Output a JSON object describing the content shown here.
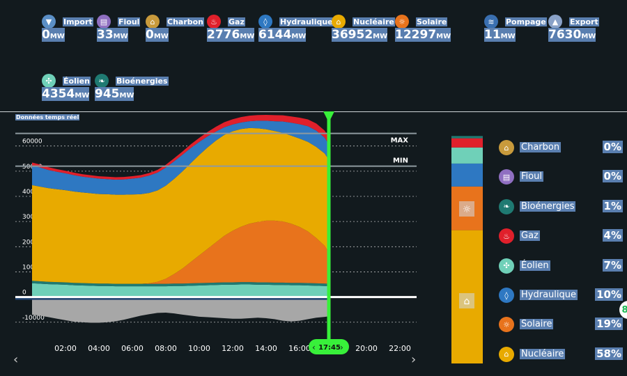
{
  "kpis": [
    {
      "id": "import",
      "label": "Import",
      "value": "0",
      "unit": "MW",
      "color": "#5b8fc6",
      "icon": "chevron-down-icon",
      "glyph": "▼"
    },
    {
      "id": "fioul",
      "label": "Fioul",
      "value": "33",
      "unit": "MW",
      "color": "#8f6fc1",
      "icon": "barrel-icon",
      "glyph": "▤"
    },
    {
      "id": "charbon",
      "label": "Charbon",
      "value": "0",
      "unit": "MW",
      "color": "#c89a3c",
      "icon": "coal-icon",
      "glyph": "⌂"
    },
    {
      "id": "gaz",
      "label": "Gaz",
      "value": "2776",
      "unit": "MW",
      "color": "#e0202b",
      "icon": "flame-icon",
      "glyph": "♨"
    },
    {
      "id": "hydraulique",
      "label": "Hydraulique",
      "value": "6144",
      "unit": "MW",
      "color": "#2e78c2",
      "icon": "water-drop-icon",
      "glyph": "◊"
    },
    {
      "id": "nucleaire",
      "label": "Nucléaire",
      "value": "36952",
      "unit": "MW",
      "color": "#e8aa00",
      "icon": "nuclear-plant-icon",
      "glyph": "⌂"
    },
    {
      "id": "solaire",
      "label": "Solaire",
      "value": "12297",
      "unit": "MW",
      "color": "#e8731c",
      "icon": "sun-icon",
      "glyph": "☼"
    },
    {
      "id": "pompage",
      "label": "Pompage",
      "value": "11",
      "unit": "MW",
      "color": "#3a6fb0",
      "icon": "pump-icon",
      "glyph": "≋"
    },
    {
      "id": "export",
      "label": "Export",
      "value": "7630",
      "unit": "MW",
      "color": "#8aa2c8",
      "icon": "chevron-up-icon",
      "glyph": "▲"
    },
    {
      "id": "eolien",
      "label": "Éolien",
      "value": "4354",
      "unit": "MW",
      "color": "#6fd0b8",
      "icon": "wind-turbine-icon",
      "glyph": "✣"
    },
    {
      "id": "bioenergies",
      "label": "Bioénergies",
      "value": "945",
      "unit": "MW",
      "color": "#1f7a72",
      "icon": "leaf-icon",
      "glyph": "❧"
    }
  ],
  "realtime_label": "Données temps réel",
  "cursor_time": "17:45",
  "chart_data": {
    "type": "area",
    "x": [
      0,
      0.5,
      1,
      1.5,
      2,
      2.5,
      3,
      3.5,
      4,
      4.5,
      5,
      5.5,
      6,
      6.5,
      7,
      7.5,
      8,
      8.5,
      9,
      9.5,
      10,
      10.5,
      11,
      11.5,
      12,
      12.5,
      13,
      13.5,
      14,
      14.5,
      15,
      15.5,
      16,
      16.5,
      17,
      17.5,
      17.75
    ],
    "x_unit": "hours",
    "xticks": [
      "02:00",
      "04:00",
      "06:00",
      "08:00",
      "10:00",
      "12:00",
      "14:00",
      "16:00",
      "18:00",
      "20:00",
      "22:00"
    ],
    "ylim": [
      -12000,
      66000
    ],
    "yticks": [
      -10000,
      0,
      10000,
      20000,
      30000,
      40000,
      50000,
      60000
    ],
    "max_line": 65000,
    "min_line": 52000,
    "max_label": "MAX",
    "min_label": "MIN",
    "series": [
      {
        "name": "Éolien",
        "color": "#6fd0b8",
        "values": [
          5500,
          5300,
          5100,
          5000,
          4900,
          4700,
          4600,
          4500,
          4400,
          4400,
          4300,
          4300,
          4300,
          4300,
          4300,
          4300,
          4300,
          4400,
          4400,
          4500,
          4600,
          4700,
          4800,
          4900,
          4900,
          5000,
          5000,
          4900,
          4900,
          4800,
          4800,
          4700,
          4700,
          4600,
          4500,
          4400,
          4354
        ]
      },
      {
        "name": "Bioénergies",
        "color": "#1f7a72",
        "values": [
          950,
          950,
          950,
          950,
          950,
          950,
          950,
          950,
          950,
          950,
          950,
          950,
          950,
          950,
          950,
          950,
          950,
          950,
          950,
          950,
          950,
          950,
          950,
          950,
          950,
          950,
          950,
          950,
          950,
          950,
          950,
          950,
          950,
          950,
          950,
          950,
          945
        ]
      },
      {
        "name": "Solaire",
        "color": "#e8731c",
        "values": [
          0,
          0,
          0,
          0,
          0,
          0,
          0,
          0,
          0,
          0,
          0,
          0,
          0,
          0,
          200,
          800,
          2000,
          3800,
          6000,
          8500,
          11000,
          13500,
          16000,
          18500,
          20500,
          22000,
          23200,
          24000,
          24500,
          24600,
          24300,
          23500,
          22200,
          20500,
          18000,
          15000,
          12297
        ]
      },
      {
        "name": "Nucléaire",
        "color": "#e8aa00",
        "values": [
          38000,
          37600,
          37200,
          36900,
          36600,
          36300,
          36000,
          35800,
          35600,
          35500,
          35400,
          35400,
          35500,
          35600,
          35900,
          36300,
          37000,
          37800,
          38600,
          39300,
          39900,
          40300,
          40400,
          40100,
          39500,
          38800,
          38000,
          37200,
          36300,
          35600,
          35200,
          35000,
          35100,
          35600,
          36200,
          36700,
          36952
        ]
      },
      {
        "name": "Hydraulique",
        "color": "#2e78c2",
        "values": [
          7800,
          7600,
          7200,
          6900,
          6700,
          6500,
          6300,
          6200,
          6100,
          6000,
          6000,
          6100,
          6300,
          6600,
          6900,
          7100,
          7200,
          7000,
          6600,
          6000,
          5200,
          4400,
          3600,
          3000,
          2700,
          2600,
          2700,
          3000,
          3400,
          3900,
          4500,
          5100,
          5700,
          6200,
          6500,
          6300,
          6144
        ]
      },
      {
        "name": "Gaz",
        "color": "#e0202b",
        "values": [
          1200,
          1150,
          1100,
          1050,
          1000,
          980,
          960,
          950,
          950,
          950,
          950,
          950,
          960,
          980,
          1000,
          1050,
          1100,
          1200,
          1300,
          1450,
          1600,
          1750,
          1900,
          2000,
          2100,
          2150,
          2200,
          2250,
          2300,
          2400,
          2450,
          2500,
          2600,
          2700,
          2800,
          2780,
          2776
        ]
      },
      {
        "name": "Export",
        "color": "#a7a7a7",
        "values": [
          -7000,
          -7400,
          -8000,
          -8600,
          -9200,
          -9800,
          -10000,
          -10200,
          -10200,
          -10000,
          -9600,
          -9000,
          -8200,
          -7400,
          -6800,
          -6300,
          -6200,
          -6500,
          -7000,
          -7400,
          -7800,
          -8000,
          -8200,
          -8400,
          -8600,
          -8600,
          -8400,
          -8200,
          -8400,
          -8800,
          -9400,
          -9700,
          -9400,
          -8800,
          -8200,
          -7900,
          -7630
        ]
      }
    ]
  },
  "nav": {
    "prev": "‹",
    "next": "›"
  },
  "breakdown": {
    "stack": [
      {
        "name": "Nucléaire",
        "pct": 58,
        "color": "#e8aa00"
      },
      {
        "name": "Solaire",
        "pct": 19,
        "color": "#e8731c"
      },
      {
        "name": "Hydraulique",
        "pct": 10,
        "color": "#2e78c2"
      },
      {
        "name": "Éolien",
        "pct": 7,
        "color": "#6fd0b8"
      },
      {
        "name": "Gaz",
        "pct": 4,
        "color": "#e0202b"
      },
      {
        "name": "Bioénergies",
        "pct": 1,
        "color": "#1f7a72"
      }
    ],
    "legend": [
      {
        "name": "Charbon",
        "pct": "0%",
        "color": "#c89a3c",
        "icon": "coal-icon",
        "glyph": "⌂"
      },
      {
        "name": "Fioul",
        "pct": "0%",
        "color": "#8f6fc1",
        "icon": "barrel-icon",
        "glyph": "▤"
      },
      {
        "name": "Bioénergies",
        "pct": "1%",
        "color": "#1f7a72",
        "icon": "leaf-icon",
        "glyph": "❧"
      },
      {
        "name": "Gaz",
        "pct": "4%",
        "color": "#e0202b",
        "icon": "flame-icon",
        "glyph": "♨"
      },
      {
        "name": "Éolien",
        "pct": "7%",
        "color": "#6fd0b8",
        "icon": "wind-turbine-icon",
        "glyph": "✣"
      },
      {
        "name": "Hydraulique",
        "pct": "10%",
        "color": "#2e78c2",
        "icon": "water-drop-icon",
        "glyph": "◊"
      },
      {
        "name": "Solaire",
        "pct": "19%",
        "color": "#e8731c",
        "icon": "sun-icon",
        "glyph": "☼"
      },
      {
        "name": "Nucléaire",
        "pct": "58%",
        "color": "#e8aa00",
        "icon": "nuclear-plant-icon",
        "glyph": "⌂"
      }
    ]
  },
  "side_tab": "8"
}
